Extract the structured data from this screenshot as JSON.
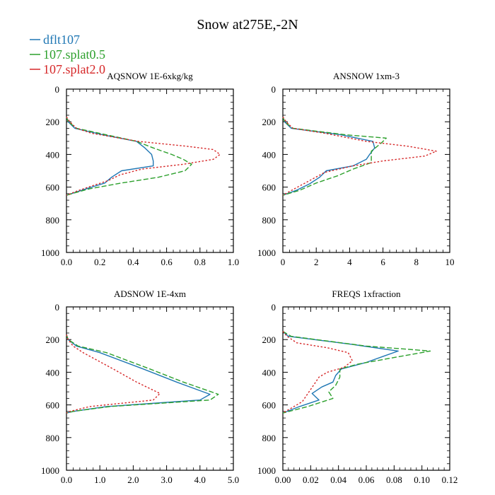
{
  "figure": {
    "title": "Snow at275E,-2N"
  },
  "legend": [
    {
      "label": "dflt107",
      "color": "#1f77b4",
      "dash": "solid"
    },
    {
      "label": "107.splat0.5",
      "color": "#2ca02c",
      "dash": "dashed"
    },
    {
      "label": "107.splat2.0",
      "color": "#d62728",
      "dash": "dotted"
    }
  ],
  "chart_data": [
    {
      "type": "line",
      "title": "AQSNOW  1E-6xkg/kg",
      "xlim": [
        0,
        1.0
      ],
      "ylim": [
        1000,
        0
      ],
      "xticks": [
        0,
        0.2,
        0.4,
        0.6,
        0.8,
        1.0
      ],
      "xtick_labels": [
        "0.0",
        "0.2",
        "0.4",
        "0.6",
        "0.8",
        "1.0"
      ],
      "yticks": [
        0,
        200,
        400,
        600,
        800,
        1000
      ],
      "ytick_labels": [
        "0",
        "200",
        "400",
        "600",
        "800",
        "1000"
      ],
      "series": [
        {
          "name": "dflt107",
          "points": [
            [
              0,
              170
            ],
            [
              0.01,
              200
            ],
            [
              0.05,
              240
            ],
            [
              0.22,
              280
            ],
            [
              0.42,
              320
            ],
            [
              0.47,
              360
            ],
            [
              0.51,
              400
            ],
            [
              0.52,
              440
            ],
            [
              0.52,
              470
            ],
            [
              0.33,
              500
            ],
            [
              0.27,
              540
            ],
            [
              0.23,
              575
            ],
            [
              0.12,
              610
            ],
            [
              0.03,
              640
            ],
            [
              0,
              650
            ]
          ]
        },
        {
          "name": "107.splat0.5",
          "points": [
            [
              0,
              170
            ],
            [
              0.01,
              200
            ],
            [
              0.06,
              240
            ],
            [
              0.24,
              280
            ],
            [
              0.42,
              320
            ],
            [
              0.52,
              360
            ],
            [
              0.63,
              400
            ],
            [
              0.7,
              430
            ],
            [
              0.75,
              460
            ],
            [
              0.71,
              500
            ],
            [
              0.55,
              540
            ],
            [
              0.33,
              575
            ],
            [
              0.14,
              610
            ],
            [
              0.05,
              635
            ],
            [
              0,
              650
            ]
          ]
        },
        {
          "name": "107.splat2.0",
          "points": [
            [
              0,
              170
            ],
            [
              0.02,
              200
            ],
            [
              0.06,
              240
            ],
            [
              0.15,
              270
            ],
            [
              0.43,
              320
            ],
            [
              0.72,
              350
            ],
            [
              0.88,
              370
            ],
            [
              0.92,
              400
            ],
            [
              0.88,
              430
            ],
            [
              0.7,
              460
            ],
            [
              0.45,
              490
            ],
            [
              0.32,
              525
            ],
            [
              0.25,
              560
            ],
            [
              0.16,
              590
            ],
            [
              0.06,
              625
            ],
            [
              0,
              650
            ]
          ]
        }
      ]
    },
    {
      "type": "line",
      "title": "ANSNOW  1xm-3",
      "xlim": [
        0,
        10
      ],
      "ylim": [
        1000,
        0
      ],
      "xticks": [
        0,
        2,
        4,
        6,
        8,
        10
      ],
      "xtick_labels": [
        "0",
        "2",
        "4",
        "6",
        "8",
        "10"
      ],
      "yticks": [
        0,
        200,
        400,
        600,
        800,
        1000
      ],
      "ytick_labels": [
        "0",
        "200",
        "400",
        "600",
        "800",
        "1000"
      ],
      "series": [
        {
          "name": "dflt107",
          "points": [
            [
              0,
              170
            ],
            [
              0.1,
              200
            ],
            [
              0.5,
              240
            ],
            [
              3.5,
              280
            ],
            [
              5.4,
              320
            ],
            [
              5.5,
              360
            ],
            [
              5.2,
              400
            ],
            [
              5.0,
              430
            ],
            [
              4.2,
              470
            ],
            [
              2.6,
              500
            ],
            [
              2.2,
              540
            ],
            [
              1.6,
              580
            ],
            [
              0.8,
              620
            ],
            [
              0,
              650
            ]
          ]
        },
        {
          "name": "107.splat0.5",
          "points": [
            [
              0,
              170
            ],
            [
              0.1,
              200
            ],
            [
              0.6,
              240
            ],
            [
              3.8,
              280
            ],
            [
              6.2,
              300
            ],
            [
              5.9,
              330
            ],
            [
              5.3,
              380
            ],
            [
              5.3,
              430
            ],
            [
              5.3,
              450
            ],
            [
              4.2,
              490
            ],
            [
              3.3,
              530
            ],
            [
              2.0,
              575
            ],
            [
              1.0,
              620
            ],
            [
              0,
              650
            ]
          ]
        },
        {
          "name": "107.splat2.0",
          "points": [
            [
              0,
              170
            ],
            [
              0.2,
              200
            ],
            [
              0.6,
              240
            ],
            [
              2.5,
              270
            ],
            [
              5.0,
              320
            ],
            [
              7.5,
              350
            ],
            [
              9.2,
              380
            ],
            [
              8.5,
              410
            ],
            [
              6.0,
              440
            ],
            [
              4.2,
              470
            ],
            [
              2.5,
              510
            ],
            [
              1.6,
              560
            ],
            [
              0.7,
              610
            ],
            [
              0,
              650
            ]
          ]
        }
      ]
    },
    {
      "type": "line",
      "title": "ADSNOW  1E-4xm",
      "xlim": [
        0,
        5.0
      ],
      "ylim": [
        1000,
        0
      ],
      "xticks": [
        0,
        1,
        2,
        3,
        4,
        5
      ],
      "xtick_labels": [
        "0.0",
        "1.0",
        "2.0",
        "3.0",
        "4.0",
        "5.0"
      ],
      "yticks": [
        0,
        200,
        400,
        600,
        800,
        1000
      ],
      "ytick_labels": [
        "0",
        "200",
        "400",
        "600",
        "800",
        "1000"
      ],
      "series": [
        {
          "name": "dflt107",
          "points": [
            [
              0,
              170
            ],
            [
              0.05,
              200
            ],
            [
              0.3,
              240
            ],
            [
              1.0,
              280
            ],
            [
              2.3,
              380
            ],
            [
              3.3,
              460
            ],
            [
              4.3,
              535
            ],
            [
              4.0,
              570
            ],
            [
              1.2,
              610
            ],
            [
              0.2,
              640
            ],
            [
              0,
              650
            ]
          ]
        },
        {
          "name": "107.splat0.5",
          "points": [
            [
              0,
              170
            ],
            [
              0.05,
              200
            ],
            [
              0.35,
              240
            ],
            [
              1.2,
              280
            ],
            [
              2.5,
              380
            ],
            [
              3.5,
              460
            ],
            [
              4.55,
              535
            ],
            [
              4.3,
              570
            ],
            [
              1.3,
              610
            ],
            [
              0.2,
              640
            ],
            [
              0,
              650
            ]
          ]
        },
        {
          "name": "107.splat2.0",
          "points": [
            [
              0,
              170
            ],
            [
              0.05,
              200
            ],
            [
              0.2,
              240
            ],
            [
              0.5,
              280
            ],
            [
              1.4,
              380
            ],
            [
              2.1,
              460
            ],
            [
              2.8,
              530
            ],
            [
              2.6,
              570
            ],
            [
              0.7,
              610
            ],
            [
              0.1,
              640
            ],
            [
              0,
              650
            ]
          ]
        }
      ]
    },
    {
      "type": "line",
      "title": "FREQS  1xfraction",
      "xlim": [
        0,
        0.12
      ],
      "ylim": [
        1000,
        0
      ],
      "xticks": [
        0,
        0.02,
        0.04,
        0.06,
        0.08,
        0.1,
        0.12
      ],
      "xtick_labels": [
        "0.00",
        "0.02",
        "0.04",
        "0.06",
        "0.08",
        "0.10",
        "0.12"
      ],
      "yticks": [
        0,
        200,
        400,
        600,
        800,
        1000
      ],
      "ytick_labels": [
        "0",
        "200",
        "400",
        "600",
        "800",
        "1000"
      ],
      "series": [
        {
          "name": "dflt107",
          "points": [
            [
              0,
              150
            ],
            [
              0.004,
              180
            ],
            [
              0.05,
              230
            ],
            [
              0.083,
              270
            ],
            [
              0.073,
              300
            ],
            [
              0.06,
              340
            ],
            [
              0.042,
              380
            ],
            [
              0.038,
              420
            ],
            [
              0.036,
              460
            ],
            [
              0.028,
              490
            ],
            [
              0.021,
              530
            ],
            [
              0.026,
              570
            ],
            [
              0.012,
              610
            ],
            [
              0,
              650
            ]
          ]
        },
        {
          "name": "107.splat0.5",
          "points": [
            [
              0,
              150
            ],
            [
              0.006,
              180
            ],
            [
              0.06,
              240
            ],
            [
              0.106,
              270
            ],
            [
              0.08,
              310
            ],
            [
              0.054,
              350
            ],
            [
              0.041,
              380
            ],
            [
              0.041,
              430
            ],
            [
              0.038,
              480
            ],
            [
              0.033,
              520
            ],
            [
              0.036,
              560
            ],
            [
              0.018,
              610
            ],
            [
              0,
              650
            ]
          ]
        },
        {
          "name": "107.splat2.0",
          "points": [
            [
              0,
              150
            ],
            [
              0.003,
              180
            ],
            [
              0.01,
              220
            ],
            [
              0.032,
              250
            ],
            [
              0.047,
              280
            ],
            [
              0.05,
              330
            ],
            [
              0.044,
              370
            ],
            [
              0.032,
              400
            ],
            [
              0.026,
              430
            ],
            [
              0.022,
              480
            ],
            [
              0.018,
              530
            ],
            [
              0.014,
              580
            ],
            [
              0.006,
              620
            ],
            [
              0,
              650
            ]
          ]
        }
      ]
    }
  ]
}
